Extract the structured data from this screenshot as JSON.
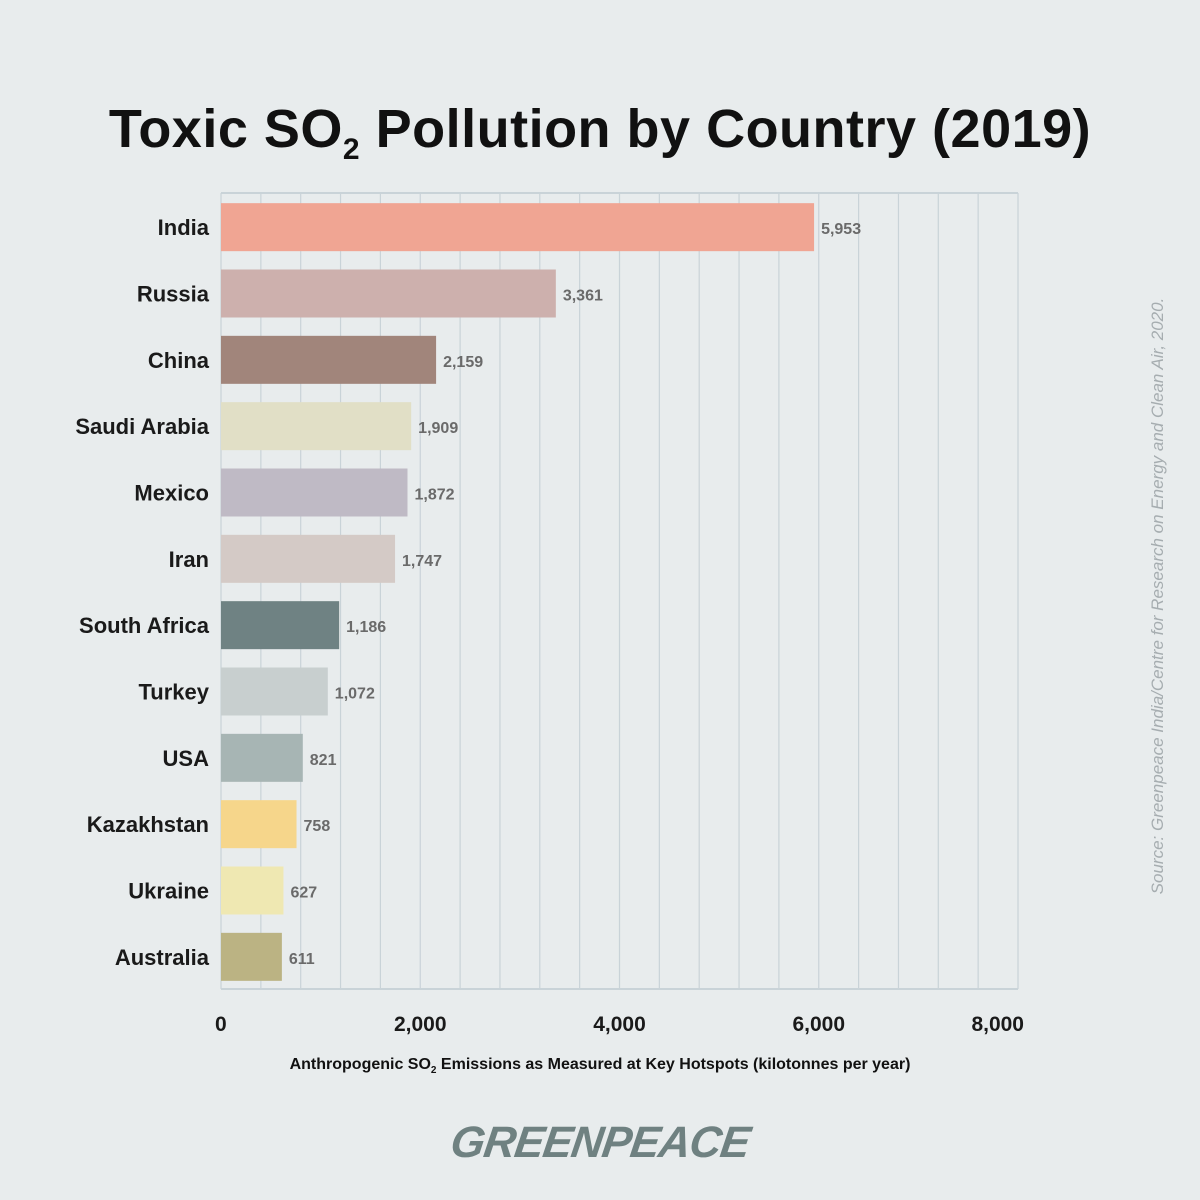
{
  "title": {
    "prefix": "Toxic SO",
    "sub": "2",
    "suffix": " Pollution by Country (2019)"
  },
  "source": "Source: Greenpeace India/Centre for Research on Energy and Clean Air, 2020.",
  "logo": "GREENPEACE",
  "chart_data": {
    "type": "bar",
    "orientation": "horizontal",
    "title": "Toxic SO2 Pollution by Country (2019)",
    "xlabel": {
      "prefix": "Anthropogenic SO",
      "sub": "2",
      "suffix": " Emissions as Measured at Key Hotspots (kilotonnes per year)"
    },
    "xlim": [
      0,
      8000
    ],
    "xticks": [
      0,
      2000,
      4000,
      6000,
      8000
    ],
    "xtick_labels": [
      "0",
      "2,000",
      "4,000",
      "6,000",
      "8,000"
    ],
    "grid": true,
    "categories": [
      "India",
      "Russia",
      "China",
      "Saudi Arabia",
      "Mexico",
      "Iran",
      "South Africa",
      "Turkey",
      "USA",
      "Kazakhstan",
      "Ukraine",
      "Australia"
    ],
    "values": [
      5953,
      3361,
      2159,
      1909,
      1872,
      1747,
      1186,
      1072,
      821,
      758,
      627,
      611
    ],
    "value_labels": [
      "5,953",
      "3,361",
      "2,159",
      "1,909",
      "1,872",
      "1,747",
      "1,186",
      "1,072",
      "821",
      "758",
      "627",
      "611"
    ],
    "colors": [
      "#f0a593",
      "#cdb0ad",
      "#a1857b",
      "#e1dfc6",
      "#bfbac5",
      "#d4cac6",
      "#6f8283",
      "#c8cfcf",
      "#a7b5b4",
      "#f6d68b",
      "#efe8b2",
      "#bbb383"
    ]
  }
}
